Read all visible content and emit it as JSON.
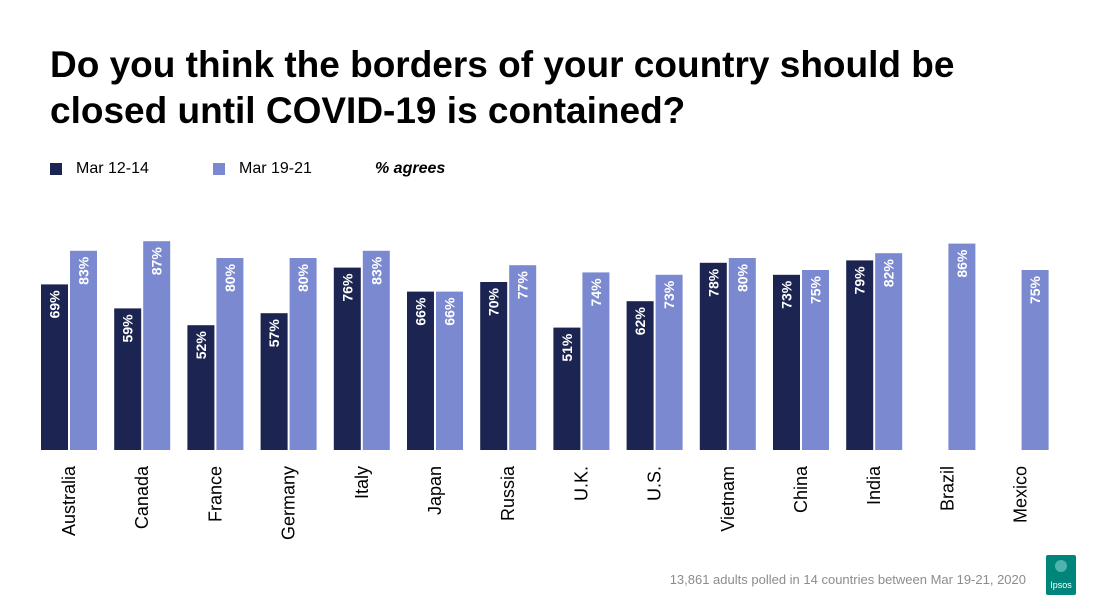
{
  "title": "Do you think the borders of your country should be closed until COVID-19 is contained?",
  "legend": {
    "series_1": "Mar 12-14",
    "series_2": "Mar 19-21",
    "note": "% agrees"
  },
  "footnote": "13,861 adults polled in 14 countries between Mar 19-21, 2020",
  "logo_text": "Ipsos",
  "colors": {
    "series_1": "#1c2551",
    "series_2": "#7b89d1",
    "label_text": "#ffffff",
    "logo": "#00857a"
  },
  "chart_data": {
    "type": "bar",
    "title": "Do you think the borders of your country should be closed until COVID-19 is contained?",
    "xlabel": "",
    "ylabel": "",
    "ylim": [
      0,
      100
    ],
    "grid": false,
    "legend_placement": "top-left",
    "value_suffix": "%",
    "categories": [
      "Australia",
      "Canada",
      "France",
      "Germany",
      "Italy",
      "Japan",
      "Russia",
      "U.K.",
      "U.S.",
      "Vietnam",
      "China",
      "India",
      "Brazil",
      "Mexico"
    ],
    "series": [
      {
        "name": "Mar 12-14",
        "values": [
          69,
          59,
          52,
          57,
          76,
          66,
          70,
          51,
          62,
          78,
          73,
          79,
          null,
          null
        ]
      },
      {
        "name": "Mar 19-21",
        "values": [
          83,
          87,
          80,
          80,
          83,
          66,
          77,
          74,
          73,
          80,
          75,
          82,
          86,
          75
        ]
      }
    ]
  }
}
